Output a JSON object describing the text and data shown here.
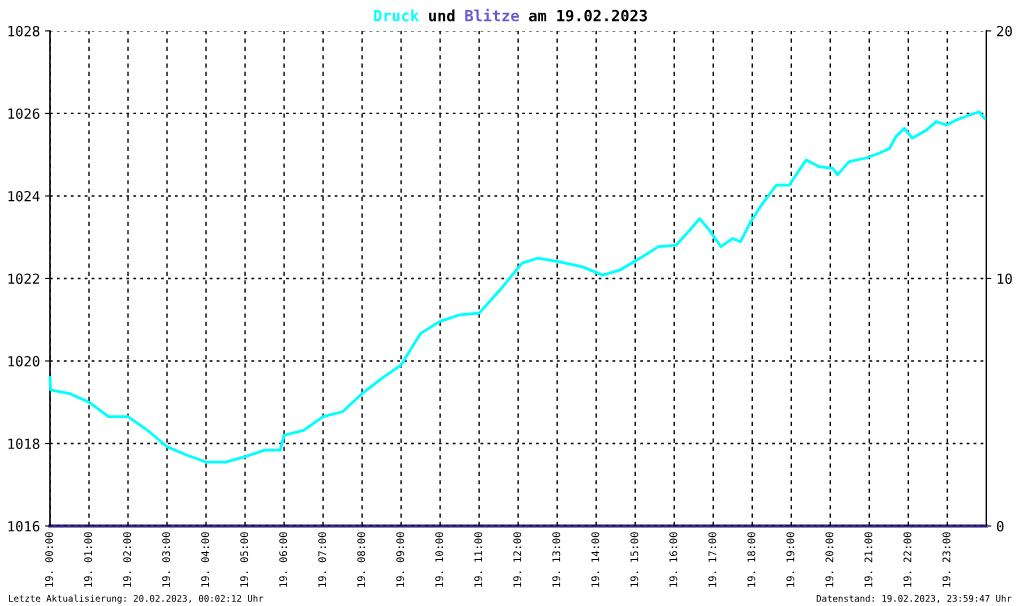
{
  "chart_data": {
    "type": "line",
    "title": "am 19.02.2023",
    "xlim": [
      "2023-02-19T00:00",
      "2023-02-20T00:00"
    ],
    "xticks": [
      {
        "value": "2023-02-19T00:00",
        "label": "19. 00:00"
      },
      {
        "value": "2023-02-19T01:00",
        "label": "19. 01:00"
      },
      {
        "value": "2023-02-19T02:00",
        "label": "19. 02:00"
      },
      {
        "value": "2023-02-19T03:00",
        "label": "19. 03:00"
      },
      {
        "value": "2023-02-19T04:00",
        "label": "19. 04:00"
      },
      {
        "value": "2023-02-19T05:00",
        "label": "19. 05:00"
      },
      {
        "value": "2023-02-19T06:00",
        "label": "19. 06:00"
      },
      {
        "value": "2023-02-19T07:00",
        "label": "19. 07:00"
      },
      {
        "value": "2023-02-19T08:00",
        "label": "19. 08:00"
      },
      {
        "value": "2023-02-19T09:00",
        "label": "19. 09:00"
      },
      {
        "value": "2023-02-19T10:00",
        "label": "19. 10:00"
      },
      {
        "value": "2023-02-19T11:00",
        "label": "19. 11:00"
      },
      {
        "value": "2023-02-19T12:00",
        "label": "19. 12:00"
      },
      {
        "value": "2023-02-19T13:00",
        "label": "19. 13:00"
      },
      {
        "value": "2023-02-19T14:00",
        "label": "19. 14:00"
      },
      {
        "value": "2023-02-19T15:00",
        "label": "19. 15:00"
      },
      {
        "value": "2023-02-19T16:00",
        "label": "19. 16:00"
      },
      {
        "value": "2023-02-19T17:00",
        "label": "19. 17:00"
      },
      {
        "value": "2023-02-19T18:00",
        "label": "19. 18:00"
      },
      {
        "value": "2023-02-19T19:00",
        "label": "19. 19:00"
      },
      {
        "value": "2023-02-19T20:00",
        "label": "19. 20:00"
      },
      {
        "value": "2023-02-19T21:00",
        "label": "19. 21:00"
      },
      {
        "value": "2023-02-19T22:00",
        "label": "19. 22:00"
      },
      {
        "value": "2023-02-19T23:00",
        "label": "19. 23:00"
      }
    ],
    "ylim": [
      1016,
      1028
    ],
    "yticks": [
      1016,
      1018,
      1020,
      1022,
      1024,
      1026,
      1028
    ],
    "y2lim": [
      0,
      20
    ],
    "y2ticks": [
      0,
      10,
      20
    ],
    "grid": true,
    "marker": "none",
    "line_style": "solid",
    "series": [
      {
        "name": "Druck",
        "color": "#00ffff",
        "x": [
          "2023-02-19T00:00",
          "2023-02-19T00:01",
          "2023-02-19T00:30",
          "2023-02-19T01:00",
          "2023-02-19T01:30",
          "2023-02-19T02:00",
          "2023-02-19T02:30",
          "2023-02-19T03:00",
          "2023-02-19T03:30",
          "2023-02-19T04:00",
          "2023-02-19T04:30",
          "2023-02-19T05:00",
          "2023-02-19T05:30",
          "2023-02-19T05:54",
          "2023-02-19T06:00",
          "2023-02-19T06:30",
          "2023-02-19T07:00",
          "2023-02-19T07:30",
          "2023-02-19T08:00",
          "2023-02-19T08:30",
          "2023-02-19T09:00",
          "2023-02-19T09:30",
          "2023-02-19T10:00",
          "2023-02-19T10:30",
          "2023-02-19T11:00",
          "2023-02-19T11:32",
          "2023-02-19T12:06",
          "2023-02-19T12:30",
          "2023-02-19T13:04",
          "2023-02-19T13:39",
          "2023-02-19T14:10",
          "2023-02-19T14:36",
          "2023-02-19T15:02",
          "2023-02-19T15:36",
          "2023-02-19T16:03",
          "2023-02-19T16:24",
          "2023-02-19T16:39",
          "2023-02-19T16:54",
          "2023-02-19T17:12",
          "2023-02-19T17:30",
          "2023-02-19T17:42",
          "2023-02-19T17:56",
          "2023-02-19T18:16",
          "2023-02-19T18:37",
          "2023-02-19T18:57",
          "2023-02-19T19:12",
          "2023-02-19T19:23",
          "2023-02-19T19:43",
          "2023-02-19T20:04",
          "2023-02-19T20:11",
          "2023-02-19T20:29",
          "2023-02-19T20:55",
          "2023-02-19T21:16",
          "2023-02-19T21:31",
          "2023-02-19T21:41",
          "2023-02-19T21:54",
          "2023-02-19T22:06",
          "2023-02-19T22:28",
          "2023-02-19T22:43",
          "2023-02-19T22:59",
          "2023-02-19T23:14",
          "2023-02-19T23:34",
          "2023-02-19T23:49",
          "2023-02-19T23:57"
        ],
        "values": [
          1019.6,
          1019.3,
          1019.21,
          1019.0,
          1018.65,
          1018.65,
          1018.32,
          1017.92,
          1017.72,
          1017.55,
          1017.55,
          1017.68,
          1017.84,
          1017.84,
          1018.2,
          1018.32,
          1018.65,
          1018.77,
          1019.21,
          1019.58,
          1019.9,
          1020.67,
          1020.96,
          1021.12,
          1021.16,
          1021.72,
          1022.37,
          1022.49,
          1022.4,
          1022.28,
          1022.08,
          1022.2,
          1022.44,
          1022.77,
          1022.81,
          1023.17,
          1023.45,
          1023.17,
          1022.77,
          1022.97,
          1022.89,
          1023.33,
          1023.82,
          1024.26,
          1024.26,
          1024.62,
          1024.87,
          1024.71,
          1024.67,
          1024.51,
          1024.83,
          1024.92,
          1025.04,
          1025.15,
          1025.44,
          1025.64,
          1025.4,
          1025.6,
          1025.8,
          1025.72,
          1025.84,
          1025.96,
          1026.04,
          1025.88
        ]
      },
      {
        "name": "Blitze",
        "color": "#6a5acd",
        "axis": "y2",
        "x": [
          "2023-02-19T00:00",
          "2023-02-20T00:00"
        ],
        "values": [
          0,
          0
        ]
      }
    ],
    "annotations": [
      "und",
      "Letzte Aktualisierung: 20.02.2023, 00:02:12 Uhr",
      "Datenstand: 19.02.2023, 23:59:47 Uhr"
    ]
  }
}
